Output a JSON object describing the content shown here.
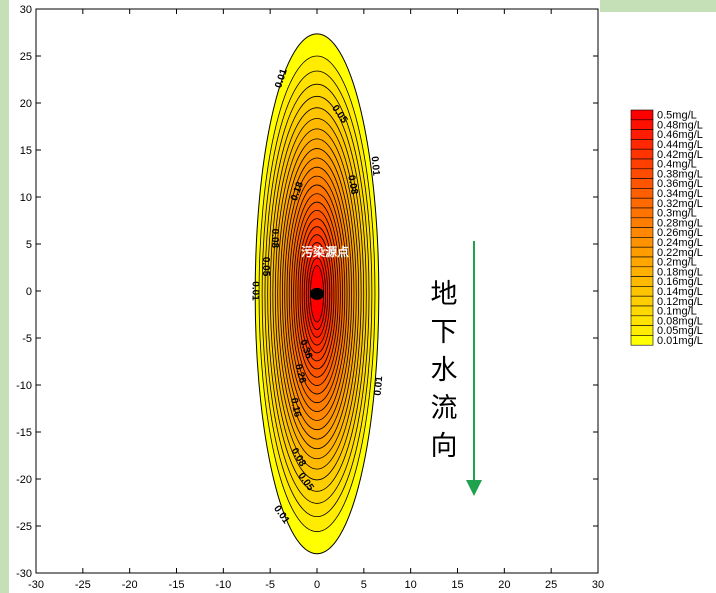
{
  "chart_data": {
    "type": "contour",
    "xlim": [
      -30,
      30
    ],
    "ylim": [
      -30,
      30
    ],
    "x_ticks": [
      -30,
      -25,
      -20,
      -15,
      -10,
      -5,
      0,
      5,
      10,
      15,
      20,
      25,
      30
    ],
    "y_ticks": [
      -30,
      -25,
      -20,
      -15,
      -10,
      -5,
      0,
      5,
      10,
      15,
      20,
      25,
      30
    ],
    "source_point": {
      "x": 0,
      "y": -0.3
    },
    "source_label": "污染源点",
    "flow_label": "地下水流向",
    "flow_direction": "down",
    "flow_arrow_color": "#1ea24e",
    "outer_fill_color": "#ffff00",
    "contour_levels": [
      0.01,
      0.05,
      0.08,
      0.1,
      0.12,
      0.14,
      0.16,
      0.18,
      0.2,
      0.22,
      0.24,
      0.26,
      0.28,
      0.3,
      0.32,
      0.34,
      0.36,
      0.38,
      0.4,
      0.42,
      0.44,
      0.46,
      0.48,
      0.5
    ],
    "contour_labels": [
      {
        "text": "0.01",
        "x": -3.8,
        "y": 22.6,
        "rotate": -72
      },
      {
        "text": "0.05",
        "x": 2.4,
        "y": 18.8,
        "rotate": 55
      },
      {
        "text": "0.01",
        "x": 6.2,
        "y": 13.3,
        "rotate": 85
      },
      {
        "text": "0.18",
        "x": -2.1,
        "y": 10.6,
        "rotate": -70
      },
      {
        "text": "0.08",
        "x": 3.8,
        "y": 11.3,
        "rotate": 80
      },
      {
        "text": "0.08",
        "x": -4.5,
        "y": 5.6,
        "rotate": 90
      },
      {
        "text": "0.05",
        "x": -5.5,
        "y": 2.6,
        "rotate": 90
      },
      {
        "text": "0.01",
        "x": -6.6,
        "y": 0.0,
        "rotate": 90
      },
      {
        "text": "0.36",
        "x": -1.2,
        "y": -6.2,
        "rotate": 70
      },
      {
        "text": "0.26",
        "x": -1.8,
        "y": -8.8,
        "rotate": 75
      },
      {
        "text": "0.16",
        "x": -2.3,
        "y": -12.4,
        "rotate": 78
      },
      {
        "text": "0.01",
        "x": 6.6,
        "y": -10.1,
        "rotate": -85
      },
      {
        "text": "0.08",
        "x": -2.0,
        "y": -17.7,
        "rotate": 60
      },
      {
        "text": "0.05",
        "x": -1.2,
        "y": -20.3,
        "rotate": 55
      },
      {
        "text": "0.01",
        "x": -3.8,
        "y": -23.8,
        "rotate": 55
      }
    ],
    "legend": {
      "entries": [
        {
          "label": "0.5mg/L",
          "color": "#ff0000"
        },
        {
          "label": "0.48mg/L",
          "color": "#ff1000"
        },
        {
          "label": "0.46mg/L",
          "color": "#ff1c00"
        },
        {
          "label": "0.44mg/L",
          "color": "#ff2800"
        },
        {
          "label": "0.42mg/L",
          "color": "#ff3400"
        },
        {
          "label": "0.4mg/L",
          "color": "#ff4000"
        },
        {
          "label": "0.38mg/L",
          "color": "#ff4c00"
        },
        {
          "label": "0.36mg/L",
          "color": "#ff5500"
        },
        {
          "label": "0.34mg/L",
          "color": "#ff5f00"
        },
        {
          "label": "0.32mg/L",
          "color": "#ff6a00"
        },
        {
          "label": "0.3mg/L",
          "color": "#ff7400"
        },
        {
          "label": "0.28mg/L",
          "color": "#ff7e00"
        },
        {
          "label": "0.26mg/L",
          "color": "#ff8800"
        },
        {
          "label": "0.24mg/L",
          "color": "#ff9200"
        },
        {
          "label": "0.22mg/L",
          "color": "#ff9c00"
        },
        {
          "label": "0.2mg/L",
          "color": "#ffa600"
        },
        {
          "label": "0.18mg/L",
          "color": "#ffb000"
        },
        {
          "label": "0.16mg/L",
          "color": "#ffba00"
        },
        {
          "label": "0.14mg/L",
          "color": "#ffc400"
        },
        {
          "label": "0.12mg/L",
          "color": "#ffce00"
        },
        {
          "label": "0.1mg/L",
          "color": "#ffd800"
        },
        {
          "label": "0.08mg/L",
          "color": "#ffe200"
        },
        {
          "label": "0.05mg/L",
          "color": "#ffec00"
        },
        {
          "label": "0.01mg/L",
          "color": "#ffff00"
        }
      ]
    }
  }
}
